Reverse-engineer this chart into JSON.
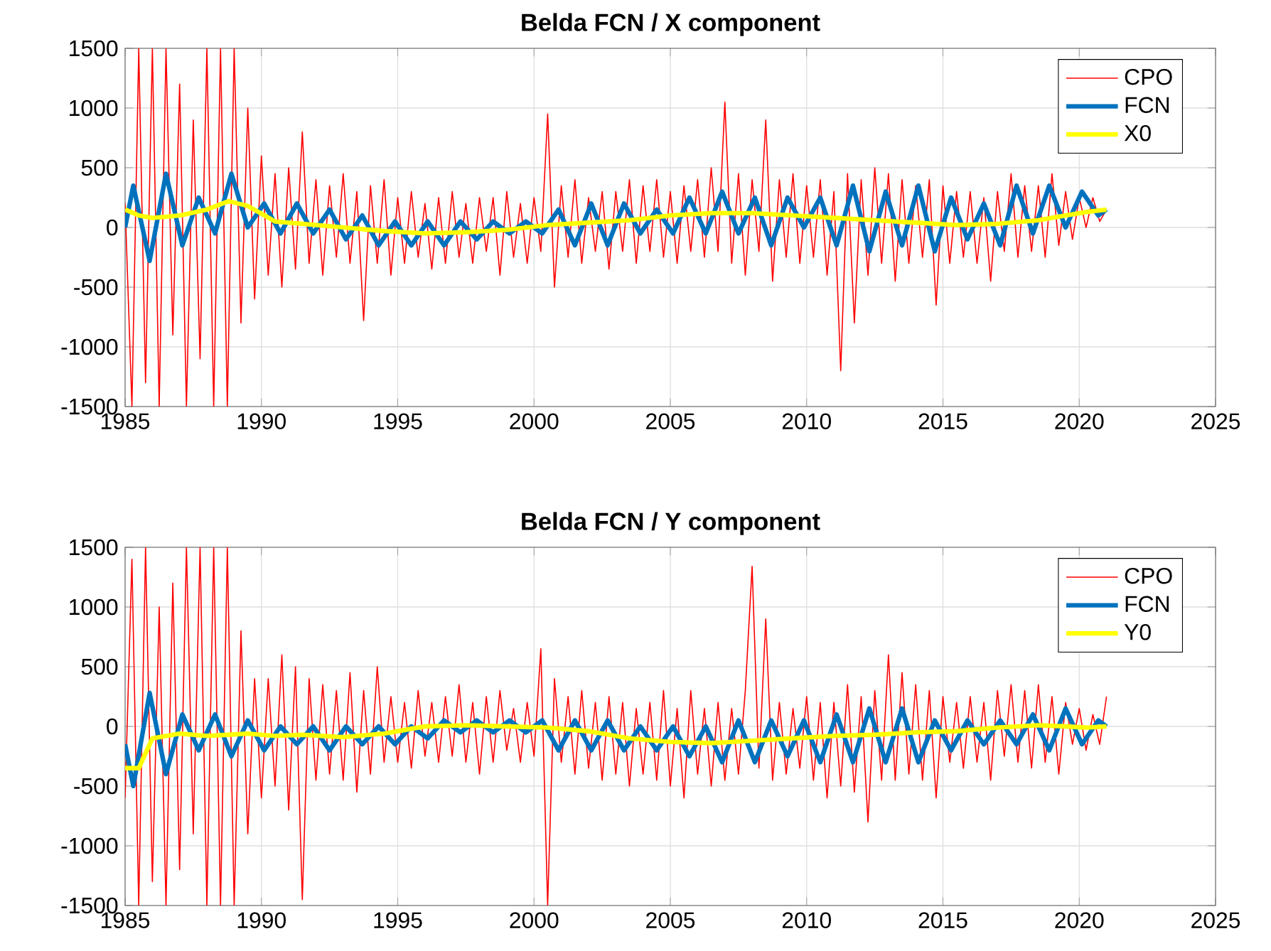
{
  "chart_data": [
    {
      "type": "line",
      "title": "Belda FCN / X component",
      "xlim": [
        1985,
        2025
      ],
      "xticks": [
        1985,
        1990,
        1995,
        2000,
        2005,
        2010,
        2015,
        2020,
        2025
      ],
      "ylim": [
        -1500,
        1500
      ],
      "yticks": [
        -1500,
        -1000,
        -500,
        0,
        500,
        1000,
        1500
      ],
      "grid": true,
      "legend": "top right",
      "series": [
        {
          "name": "CPO",
          "color": "#ff0000",
          "x": [
            1985.0,
            1985.25,
            1985.5,
            1985.75,
            1986.0,
            1986.25,
            1986.5,
            1986.75,
            1987.0,
            1987.25,
            1987.5,
            1987.75,
            1988.0,
            1988.25,
            1988.5,
            1988.75,
            1989.0,
            1989.25,
            1989.5,
            1989.75,
            1990.0,
            1990.25,
            1990.5,
            1990.75,
            1991.0,
            1991.25,
            1991.5,
            1991.75,
            1992.0,
            1992.25,
            1992.5,
            1992.75,
            1993.0,
            1993.25,
            1993.5,
            1993.75,
            1994.0,
            1994.25,
            1994.5,
            1994.75,
            1995.0,
            1995.25,
            1995.5,
            1995.75,
            1996.0,
            1996.25,
            1996.5,
            1996.75,
            1997.0,
            1997.25,
            1997.5,
            1997.75,
            1998.0,
            1998.25,
            1998.5,
            1998.75,
            1999.0,
            1999.25,
            1999.5,
            1999.75,
            2000.0,
            2000.25,
            2000.5,
            2000.75,
            2001.0,
            2001.25,
            2001.5,
            2001.75,
            2002.0,
            2002.25,
            2002.5,
            2002.75,
            2003.0,
            2003.25,
            2003.5,
            2003.75,
            2004.0,
            2004.25,
            2004.5,
            2004.75,
            2005.0,
            2005.25,
            2005.5,
            2005.75,
            2006.0,
            2006.25,
            2006.5,
            2006.75,
            2007.0,
            2007.25,
            2007.5,
            2007.75,
            2008.0,
            2008.25,
            2008.5,
            2008.75,
            2009.0,
            2009.25,
            2009.5,
            2009.75,
            2010.0,
            2010.25,
            2010.5,
            2010.75,
            2011.0,
            2011.25,
            2011.5,
            2011.75,
            2012.0,
            2012.25,
            2012.5,
            2012.75,
            2013.0,
            2013.25,
            2013.5,
            2013.75,
            2014.0,
            2014.25,
            2014.5,
            2014.75,
            2015.0,
            2015.25,
            2015.5,
            2015.75,
            2016.0,
            2016.25,
            2016.5,
            2016.75,
            2017.0,
            2017.25,
            2017.5,
            2017.75,
            2018.0,
            2018.25,
            2018.5,
            2018.75,
            2019.0,
            2019.25,
            2019.5,
            2019.75,
            2020.0,
            2020.25,
            2020.5,
            2020.75,
            2021.0
          ],
          "values": [
            200,
            -1500,
            1500,
            -1300,
            1500,
            -1500,
            1500,
            -900,
            1200,
            -1500,
            900,
            -1100,
            1500,
            -1500,
            1500,
            -1500,
            1500,
            -800,
            1000,
            -600,
            600,
            -400,
            450,
            -500,
            500,
            -350,
            800,
            -300,
            400,
            -400,
            350,
            -250,
            450,
            -300,
            300,
            -780,
            350,
            -300,
            400,
            -400,
            250,
            -300,
            300,
            -250,
            200,
            -350,
            250,
            -300,
            300,
            -250,
            200,
            -300,
            250,
            -200,
            250,
            -400,
            300,
            -250,
            200,
            -300,
            250,
            -200,
            950,
            -500,
            350,
            -250,
            400,
            -300,
            250,
            -200,
            300,
            -350,
            300,
            -200,
            400,
            -300,
            350,
            -200,
            400,
            -250,
            300,
            -300,
            350,
            -200,
            400,
            -250,
            500,
            -200,
            1050,
            -300,
            450,
            -400,
            400,
            -200,
            900,
            -450,
            400,
            -250,
            450,
            -300,
            350,
            -250,
            400,
            -400,
            300,
            -1200,
            450,
            -800,
            400,
            -400,
            500,
            -300,
            450,
            -450,
            400,
            -300,
            350,
            -250,
            400,
            -650,
            350,
            -300,
            300,
            -250,
            300,
            -300,
            250,
            -450,
            300,
            -200,
            450,
            -250,
            350,
            -200,
            350,
            -250,
            450,
            -150,
            300,
            -100,
            250,
            0,
            250,
            50,
            150
          ]
        },
        {
          "name": "FCN",
          "color": "#0072bd",
          "x": [
            1985.0,
            1985.3,
            1985.9,
            1986.5,
            1987.1,
            1987.7,
            1988.3,
            1988.9,
            1989.5,
            1990.1,
            1990.7,
            1991.3,
            1991.9,
            1992.5,
            1993.1,
            1993.7,
            1994.3,
            1994.9,
            1995.5,
            1996.1,
            1996.7,
            1997.3,
            1997.9,
            1998.5,
            1999.1,
            1999.7,
            2000.3,
            2000.9,
            2001.5,
            2002.1,
            2002.7,
            2003.3,
            2003.9,
            2004.5,
            2005.1,
            2005.7,
            2006.3,
            2006.9,
            2007.5,
            2008.1,
            2008.7,
            2009.3,
            2009.9,
            2010.5,
            2011.1,
            2011.7,
            2012.3,
            2012.9,
            2013.5,
            2014.1,
            2014.7,
            2015.3,
            2015.9,
            2016.5,
            2017.1,
            2017.7,
            2018.3,
            2018.9,
            2019.5,
            2020.1,
            2020.7,
            2021.0
          ],
          "values": [
            0,
            350,
            -280,
            450,
            -150,
            250,
            -50,
            450,
            0,
            200,
            -50,
            200,
            -50,
            150,
            -100,
            100,
            -150,
            50,
            -150,
            50,
            -150,
            50,
            -100,
            50,
            -50,
            50,
            -50,
            150,
            -150,
            200,
            -150,
            200,
            -50,
            150,
            -50,
            250,
            -50,
            300,
            -50,
            250,
            -150,
            250,
            0,
            250,
            -150,
            350,
            -200,
            300,
            -150,
            350,
            -200,
            250,
            -100,
            200,
            -150,
            350,
            -50,
            350,
            0,
            300,
            100,
            150
          ]
        },
        {
          "name": "X0",
          "color": "#ffff00",
          "x": [
            1985,
            1985.5,
            1986,
            1987,
            1988,
            1988.8,
            1989.5,
            1990.5,
            1991.5,
            1993,
            1994.5,
            1996,
            1997.5,
            1999,
            2000.5,
            2002,
            2003.5,
            2005,
            2006.5,
            2008,
            2009.5,
            2011,
            2012.5,
            2014,
            2015.5,
            2017,
            2018.5,
            2019.5,
            2020.3,
            2021
          ],
          "values": [
            150,
            100,
            80,
            100,
            150,
            220,
            180,
            50,
            30,
            0,
            -30,
            -50,
            -40,
            -20,
            20,
            40,
            60,
            100,
            120,
            120,
            100,
            80,
            60,
            40,
            20,
            30,
            60,
            100,
            130,
            150
          ]
        }
      ]
    },
    {
      "type": "line",
      "title": "Belda FCN / Y component",
      "xlim": [
        1985,
        2025
      ],
      "xticks": [
        1985,
        1990,
        1995,
        2000,
        2005,
        2010,
        2015,
        2020,
        2025
      ],
      "ylim": [
        -1500,
        1500
      ],
      "yticks": [
        -1500,
        -1000,
        -500,
        0,
        500,
        1000,
        1500
      ],
      "grid": true,
      "legend": "top right",
      "series": [
        {
          "name": "CPO",
          "color": "#ff0000",
          "x": [
            1985.0,
            1985.25,
            1985.5,
            1985.75,
            1986.0,
            1986.25,
            1986.5,
            1986.75,
            1987.0,
            1987.25,
            1987.5,
            1987.75,
            1988.0,
            1988.25,
            1988.5,
            1988.75,
            1989.0,
            1989.25,
            1989.5,
            1989.75,
            1990.0,
            1990.25,
            1990.5,
            1990.75,
            1991.0,
            1991.25,
            1991.5,
            1991.75,
            1992.0,
            1992.25,
            1992.5,
            1992.75,
            1993.0,
            1993.25,
            1993.5,
            1993.75,
            1994.0,
            1994.25,
            1994.5,
            1994.75,
            1995.0,
            1995.25,
            1995.5,
            1995.75,
            1996.0,
            1996.25,
            1996.5,
            1996.75,
            1997.0,
            1997.25,
            1997.5,
            1997.75,
            1998.0,
            1998.25,
            1998.5,
            1998.75,
            1999.0,
            1999.25,
            1999.5,
            1999.75,
            2000.0,
            2000.25,
            2000.5,
            2000.75,
            2001.0,
            2001.25,
            2001.5,
            2001.75,
            2002.0,
            2002.25,
            2002.5,
            2002.75,
            2003.0,
            2003.25,
            2003.5,
            2003.75,
            2004.0,
            2004.25,
            2004.5,
            2004.75,
            2005.0,
            2005.25,
            2005.5,
            2005.75,
            2006.0,
            2006.25,
            2006.5,
            2006.75,
            2007.0,
            2007.25,
            2007.5,
            2007.75,
            2008.0,
            2008.25,
            2008.5,
            2008.75,
            2009.0,
            2009.25,
            2009.5,
            2009.75,
            2010.0,
            2010.25,
            2010.5,
            2010.75,
            2011.0,
            2011.25,
            2011.5,
            2011.75,
            2012.0,
            2012.25,
            2012.5,
            2012.75,
            2013.0,
            2013.25,
            2013.5,
            2013.75,
            2014.0,
            2014.25,
            2014.5,
            2014.75,
            2015.0,
            2015.25,
            2015.5,
            2015.75,
            2016.0,
            2016.25,
            2016.5,
            2016.75,
            2017.0,
            2017.25,
            2017.5,
            2017.75,
            2018.0,
            2018.25,
            2018.5,
            2018.75,
            2019.0,
            2019.25,
            2019.5,
            2019.75,
            2020.0,
            2020.25,
            2020.5,
            2020.75,
            2021.0
          ],
          "values": [
            -600,
            1400,
            -1500,
            1500,
            -1300,
            1000,
            -1500,
            1200,
            -1200,
            1500,
            -900,
            1500,
            -1500,
            1500,
            -1500,
            1500,
            -1500,
            800,
            -900,
            400,
            -600,
            400,
            -500,
            600,
            -700,
            500,
            -1450,
            400,
            -450,
            350,
            -400,
            300,
            -450,
            450,
            -550,
            300,
            -400,
            500,
            -300,
            250,
            -300,
            200,
            -350,
            300,
            -250,
            200,
            -300,
            250,
            -250,
            350,
            -300,
            200,
            -400,
            250,
            -300,
            300,
            -200,
            150,
            -300,
            200,
            -250,
            650,
            -1500,
            400,
            -300,
            250,
            -400,
            300,
            -350,
            200,
            -450,
            250,
            -400,
            200,
            -500,
            150,
            -400,
            200,
            -450,
            300,
            -500,
            150,
            -600,
            300,
            -400,
            150,
            -500,
            200,
            -450,
            150,
            -400,
            300,
            1340,
            -350,
            900,
            -450,
            200,
            -400,
            150,
            -350,
            250,
            -450,
            200,
            -600,
            200,
            -500,
            350,
            -550,
            250,
            -800,
            300,
            -450,
            600,
            -450,
            450,
            -400,
            350,
            -450,
            300,
            -600,
            250,
            -300,
            200,
            -350,
            250,
            -300,
            200,
            -450,
            300,
            -250,
            350,
            -300,
            300,
            -350,
            350,
            -300,
            250,
            -400,
            200,
            -150,
            150,
            -200,
            100,
            -150,
            250
          ]
        },
        {
          "name": "FCN",
          "color": "#0072bd",
          "x": [
            1985.0,
            1985.3,
            1985.9,
            1986.5,
            1987.1,
            1987.7,
            1988.3,
            1988.9,
            1989.5,
            1990.1,
            1990.7,
            1991.3,
            1991.9,
            1992.5,
            1993.1,
            1993.7,
            1994.3,
            1994.9,
            1995.5,
            1996.1,
            1996.7,
            1997.3,
            1997.9,
            1998.5,
            1999.1,
            1999.7,
            2000.3,
            2000.9,
            2001.5,
            2002.1,
            2002.7,
            2003.3,
            2003.9,
            2004.5,
            2005.1,
            2005.7,
            2006.3,
            2006.9,
            2007.5,
            2008.1,
            2008.7,
            2009.3,
            2009.9,
            2010.5,
            2011.1,
            2011.7,
            2012.3,
            2012.9,
            2013.5,
            2014.1,
            2014.7,
            2015.3,
            2015.9,
            2016.5,
            2017.1,
            2017.7,
            2018.3,
            2018.9,
            2019.5,
            2020.1,
            2020.7,
            2021.0
          ],
          "values": [
            -150,
            -500,
            280,
            -400,
            100,
            -200,
            100,
            -250,
            50,
            -200,
            0,
            -150,
            0,
            -200,
            0,
            -150,
            0,
            -150,
            0,
            -100,
            50,
            -50,
            50,
            -50,
            50,
            -50,
            50,
            -200,
            50,
            -200,
            50,
            -200,
            0,
            -200,
            0,
            -250,
            0,
            -300,
            50,
            -300,
            50,
            -250,
            50,
            -300,
            100,
            -300,
            150,
            -300,
            150,
            -300,
            50,
            -200,
            50,
            -150,
            50,
            -150,
            100,
            -200,
            150,
            -150,
            50,
            0
          ]
        },
        {
          "name": "Y0",
          "color": "#ffff00",
          "x": [
            1985,
            1985.5,
            1986,
            1987,
            1988,
            1988.8,
            1989.5,
            1990.5,
            1991.5,
            1993,
            1994.5,
            1996,
            1997.5,
            1999,
            2000.5,
            2002,
            2003.5,
            2005,
            2006.5,
            2008,
            2009.5,
            2011,
            2012.5,
            2014,
            2015.5,
            2017,
            2018.5,
            2019.5,
            2020.3,
            2021
          ],
          "values": [
            -350,
            -350,
            -100,
            -60,
            -80,
            -70,
            -60,
            -80,
            -70,
            -90,
            -60,
            0,
            10,
            0,
            -10,
            -40,
            -100,
            -130,
            -140,
            -120,
            -100,
            -80,
            -70,
            -50,
            -40,
            -10,
            10,
            0,
            -10,
            0
          ]
        }
      ]
    }
  ]
}
